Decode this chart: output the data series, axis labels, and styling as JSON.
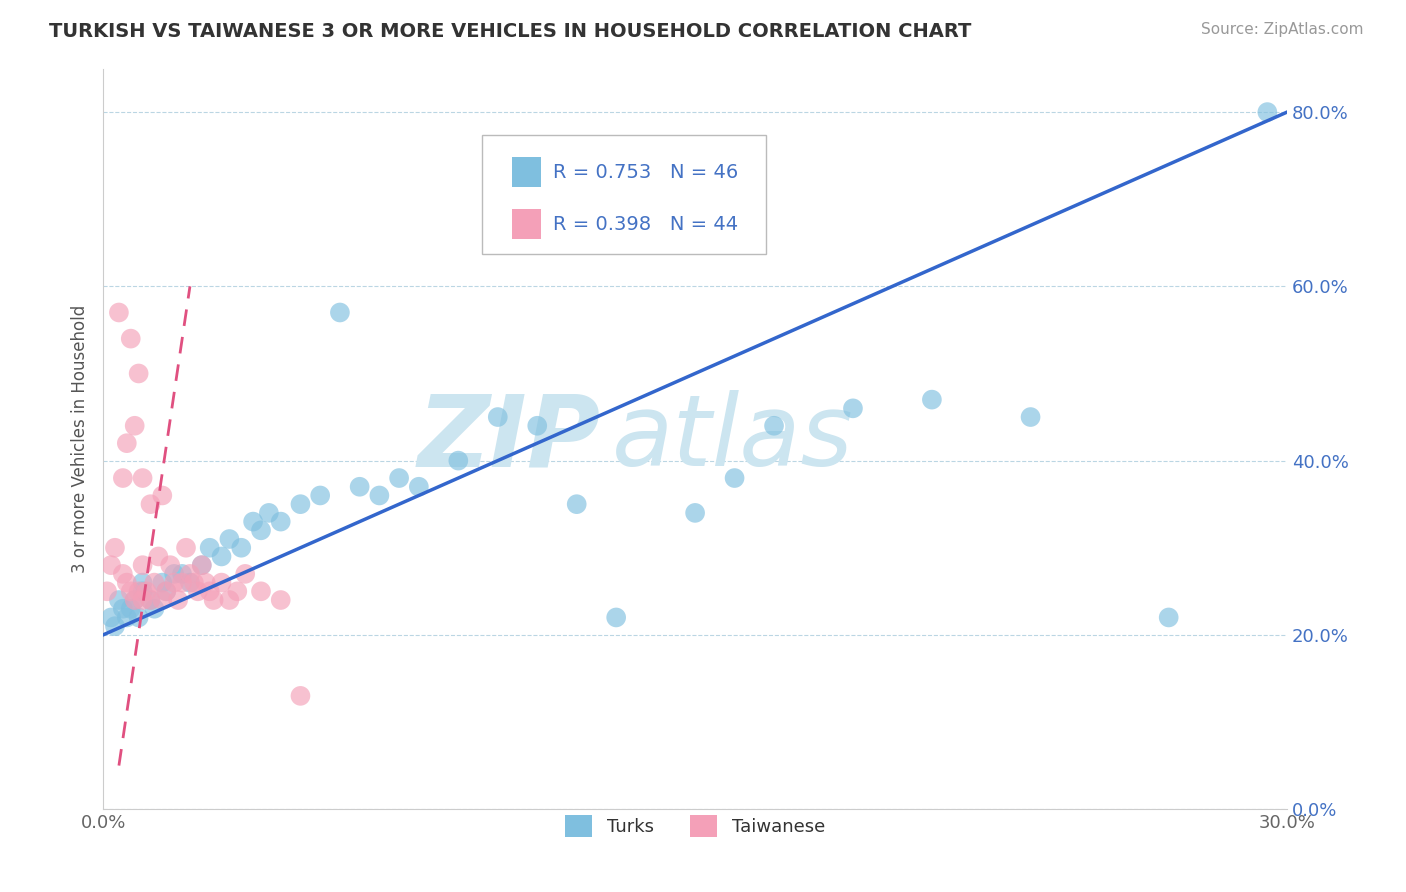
{
  "title": "TURKISH VS TAIWANESE 3 OR MORE VEHICLES IN HOUSEHOLD CORRELATION CHART",
  "source": "Source: ZipAtlas.com",
  "ylabel": "3 or more Vehicles in Household",
  "xlim": [
    0.0,
    0.3
  ],
  "ylim": [
    0.0,
    0.85
  ],
  "xticks": [
    0.0,
    0.05,
    0.1,
    0.15,
    0.2,
    0.25,
    0.3
  ],
  "xticklabels": [
    "0.0%",
    "",
    "",
    "",
    "",
    "",
    "30.0%"
  ],
  "yticks": [
    0.0,
    0.2,
    0.4,
    0.6,
    0.8
  ],
  "yticklabels": [
    "0.0%",
    "20.0%",
    "40.0%",
    "60.0%",
    "80.0%"
  ],
  "legend_blue_r": "R = 0.753",
  "legend_blue_n": "N = 46",
  "legend_pink_r": "R = 0.398",
  "legend_pink_n": "N = 44",
  "legend_blue_label": "Turks",
  "legend_pink_label": "Taiwanese",
  "blue_color": "#7fbfdf",
  "pink_color": "#f4a0b8",
  "blue_line_color": "#3366cc",
  "pink_line_color": "#e05080",
  "watermark_zip": "ZIP",
  "watermark_atlas": "atlas",
  "watermark_color": "#cce5f0",
  "blue_line_intercept": 0.2,
  "blue_line_slope": 2.0,
  "pink_line_x0": 0.004,
  "pink_line_y0": 0.05,
  "pink_line_x1": 0.022,
  "pink_line_y1": 0.6,
  "blue_dots_x": [
    0.002,
    0.003,
    0.004,
    0.005,
    0.006,
    0.007,
    0.008,
    0.009,
    0.01,
    0.01,
    0.012,
    0.013,
    0.015,
    0.016,
    0.018,
    0.02,
    0.022,
    0.025,
    0.027,
    0.03,
    0.032,
    0.035,
    0.038,
    0.04,
    0.042,
    0.045,
    0.05,
    0.055,
    0.06,
    0.065,
    0.07,
    0.075,
    0.08,
    0.09,
    0.1,
    0.11,
    0.12,
    0.13,
    0.15,
    0.16,
    0.17,
    0.19,
    0.21,
    0.235,
    0.27,
    0.295
  ],
  "blue_dots_y": [
    0.22,
    0.21,
    0.24,
    0.23,
    0.22,
    0.23,
    0.24,
    0.22,
    0.25,
    0.26,
    0.24,
    0.23,
    0.26,
    0.25,
    0.27,
    0.27,
    0.26,
    0.28,
    0.3,
    0.29,
    0.31,
    0.3,
    0.33,
    0.32,
    0.34,
    0.33,
    0.35,
    0.36,
    0.57,
    0.37,
    0.36,
    0.38,
    0.37,
    0.4,
    0.45,
    0.44,
    0.35,
    0.22,
    0.34,
    0.38,
    0.44,
    0.46,
    0.47,
    0.45,
    0.22,
    0.8
  ],
  "pink_dots_x": [
    0.001,
    0.002,
    0.003,
    0.004,
    0.005,
    0.005,
    0.006,
    0.006,
    0.007,
    0.007,
    0.008,
    0.008,
    0.009,
    0.009,
    0.01,
    0.01,
    0.01,
    0.011,
    0.012,
    0.012,
    0.013,
    0.014,
    0.015,
    0.015,
    0.016,
    0.017,
    0.018,
    0.019,
    0.02,
    0.021,
    0.022,
    0.023,
    0.024,
    0.025,
    0.026,
    0.027,
    0.028,
    0.03,
    0.032,
    0.034,
    0.036,
    0.04,
    0.045,
    0.05
  ],
  "pink_dots_y": [
    0.25,
    0.28,
    0.3,
    0.57,
    0.27,
    0.38,
    0.26,
    0.42,
    0.25,
    0.54,
    0.24,
    0.44,
    0.25,
    0.5,
    0.24,
    0.38,
    0.28,
    0.25,
    0.24,
    0.35,
    0.26,
    0.29,
    0.24,
    0.36,
    0.25,
    0.28,
    0.26,
    0.24,
    0.26,
    0.3,
    0.27,
    0.26,
    0.25,
    0.28,
    0.26,
    0.25,
    0.24,
    0.26,
    0.24,
    0.25,
    0.27,
    0.25,
    0.24,
    0.13
  ]
}
